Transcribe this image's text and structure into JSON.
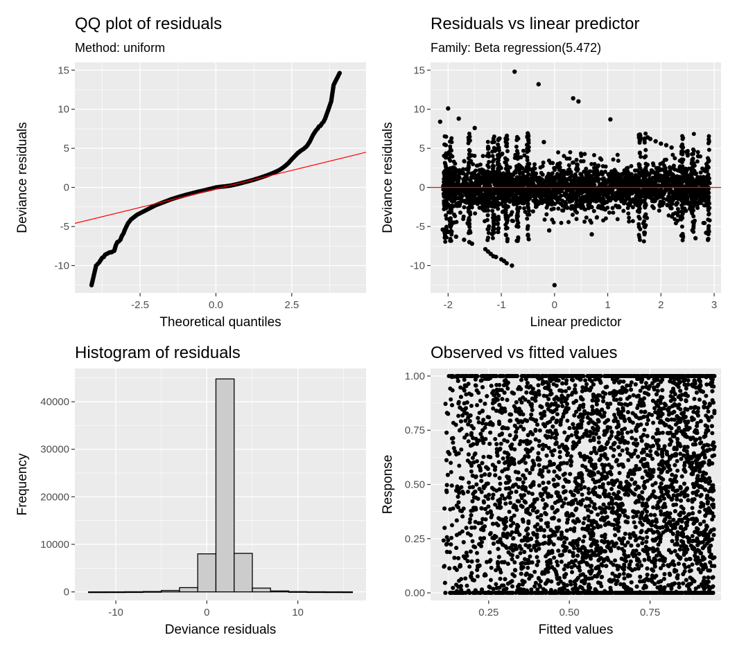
{
  "colors": {
    "panel_bg": "#ebebeb",
    "grid": "#ffffff",
    "points": "#000000",
    "reference_line": "#ff0000",
    "bar_fill": "#cccccc",
    "tick_text": "#4d4d4d"
  },
  "chart_data": [
    {
      "type": "scatter",
      "title": "QQ plot of residuals",
      "subtitle": "Method: uniform",
      "xlabel": "Theoretical quantiles",
      "ylabel": "Deviance residuals",
      "xlim": [
        -4.65,
        4.95
      ],
      "ylim": [
        -13.5,
        16.0
      ],
      "xticks": [
        -2.5,
        0.0,
        2.5
      ],
      "xtick_labels": [
        "-2.5",
        "0.0",
        "2.5"
      ],
      "yticks": [
        -10,
        -5,
        0,
        5,
        10,
        15
      ],
      "ytick_labels": [
        "-10",
        "-5",
        "0",
        "5",
        "10",
        "15"
      ],
      "points": [
        [
          -4.1,
          -12.5
        ],
        [
          -3.95,
          -10.0
        ],
        [
          -3.9,
          -9.8
        ],
        [
          -3.85,
          -9.6
        ],
        [
          -3.8,
          -9.3
        ],
        [
          -3.75,
          -9.0
        ],
        [
          -3.7,
          -8.9
        ],
        [
          -3.65,
          -8.6
        ],
        [
          -3.6,
          -8.5
        ],
        [
          -3.55,
          -8.4
        ],
        [
          -3.5,
          -8.3
        ],
        [
          -3.45,
          -8.3
        ],
        [
          -3.4,
          -8.2
        ],
        [
          -3.35,
          -8.1
        ],
        [
          -3.3,
          -7.4
        ],
        [
          -3.25,
          -7.0
        ],
        [
          -3.2,
          -6.9
        ],
        [
          -3.15,
          -6.7
        ],
        [
          -3.1,
          -6.2
        ],
        [
          -3.05,
          -5.9
        ],
        [
          -3.0,
          -5.4
        ],
        [
          -2.95,
          -5.0
        ],
        [
          -2.9,
          -4.6
        ],
        [
          -2.8,
          -4.1
        ],
        [
          -2.7,
          -3.8
        ],
        [
          -2.6,
          -3.5
        ],
        [
          -2.5,
          -3.3
        ],
        [
          -2.4,
          -3.1
        ],
        [
          -2.3,
          -2.9
        ],
        [
          -2.2,
          -2.7
        ],
        [
          -2.1,
          -2.5
        ],
        [
          -2.0,
          -2.3
        ],
        [
          -1.9,
          -2.15
        ],
        [
          -1.8,
          -2.0
        ],
        [
          -1.7,
          -1.85
        ],
        [
          -1.6,
          -1.7
        ],
        [
          -1.5,
          -1.55
        ],
        [
          -1.4,
          -1.42
        ],
        [
          -1.3,
          -1.3
        ],
        [
          -1.2,
          -1.18
        ],
        [
          -1.1,
          -1.07
        ],
        [
          -1.0,
          -0.96
        ],
        [
          -0.9,
          -0.86
        ],
        [
          -0.8,
          -0.76
        ],
        [
          -0.7,
          -0.66
        ],
        [
          -0.6,
          -0.56
        ],
        [
          -0.5,
          -0.47
        ],
        [
          -0.4,
          -0.38
        ],
        [
          -0.3,
          -0.29
        ],
        [
          -0.2,
          -0.2
        ],
        [
          -0.1,
          -0.1
        ],
        [
          0.0,
          0.0
        ],
        [
          0.1,
          0.06
        ],
        [
          0.2,
          0.1
        ],
        [
          0.3,
          0.14
        ],
        [
          0.4,
          0.19
        ],
        [
          0.5,
          0.25
        ],
        [
          0.6,
          0.33
        ],
        [
          0.7,
          0.42
        ],
        [
          0.8,
          0.52
        ],
        [
          0.9,
          0.62
        ],
        [
          1.0,
          0.72
        ],
        [
          1.1,
          0.82
        ],
        [
          1.2,
          0.93
        ],
        [
          1.3,
          1.05
        ],
        [
          1.4,
          1.17
        ],
        [
          1.5,
          1.3
        ],
        [
          1.6,
          1.43
        ],
        [
          1.7,
          1.57
        ],
        [
          1.8,
          1.72
        ],
        [
          1.9,
          1.88
        ],
        [
          2.0,
          2.05
        ],
        [
          2.1,
          2.25
        ],
        [
          2.2,
          2.5
        ],
        [
          2.3,
          2.8
        ],
        [
          2.4,
          3.15
        ],
        [
          2.5,
          3.6
        ],
        [
          2.6,
          4.0
        ],
        [
          2.7,
          4.4
        ],
        [
          2.8,
          4.7
        ],
        [
          2.9,
          4.95
        ],
        [
          3.0,
          5.3
        ],
        [
          3.05,
          5.6
        ],
        [
          3.1,
          5.9
        ],
        [
          3.15,
          6.3
        ],
        [
          3.2,
          6.7
        ],
        [
          3.25,
          7.0
        ],
        [
          3.3,
          7.3
        ],
        [
          3.35,
          7.5
        ],
        [
          3.4,
          7.8
        ],
        [
          3.45,
          7.9
        ],
        [
          3.5,
          8.2
        ],
        [
          3.55,
          8.4
        ],
        [
          3.6,
          8.8
        ],
        [
          3.72,
          10.1
        ],
        [
          3.8,
          11.0
        ],
        [
          3.88,
          13.1
        ],
        [
          4.1,
          14.8
        ]
      ],
      "reference_line": [
        [
          -4.65,
          -4.6
        ],
        [
          4.95,
          4.5
        ]
      ]
    },
    {
      "type": "scatter",
      "title": "Residuals vs linear predictor",
      "subtitle": "Family: Beta regression(5.472)",
      "xlabel": "Linear predictor",
      "ylabel": "Deviance residuals",
      "xlim": [
        -2.33,
        3.13
      ],
      "ylim": [
        -13.5,
        16.0
      ],
      "xticks": [
        -2,
        -1,
        0,
        1,
        2,
        3
      ],
      "xtick_labels": [
        "-2",
        "-1",
        "0",
        "1",
        "2",
        "3"
      ],
      "yticks": [
        -10,
        -5,
        0,
        5,
        10,
        15
      ],
      "ytick_labels": [
        "-10",
        "-5",
        "0",
        "5",
        "10",
        "15"
      ],
      "points": [
        [
          -2.1,
          -5.4
        ],
        [
          -2.0,
          -5.7
        ],
        [
          -1.85,
          -6.3
        ],
        [
          -1.7,
          -6.7
        ],
        [
          -1.6,
          -7.0
        ],
        [
          -1.55,
          -7.2
        ],
        [
          -1.3,
          -7.9
        ],
        [
          -1.25,
          -8.2
        ],
        [
          -1.2,
          -8.5
        ],
        [
          -1.15,
          -8.8
        ],
        [
          -1.1,
          -8.9
        ],
        [
          -1.0,
          -9.2
        ],
        [
          -0.95,
          -9.4
        ],
        [
          -0.9,
          -9.7
        ],
        [
          -0.8,
          -10.0
        ],
        [
          -2.0,
          10.1
        ],
        [
          -2.15,
          8.4
        ],
        [
          -1.8,
          8.8
        ],
        [
          -1.5,
          7.6
        ],
        [
          -0.75,
          14.8
        ],
        [
          -0.3,
          13.2
        ],
        [
          0.35,
          11.4
        ],
        [
          0.45,
          11.0
        ],
        [
          1.05,
          8.7
        ],
        [
          0.0,
          -12.5
        ],
        [
          -0.1,
          -5.5
        ],
        [
          0.7,
          -6.0
        ],
        [
          2.65,
          -6.5
        ],
        [
          2.85,
          -5.8
        ],
        [
          -0.2,
          5.8
        ],
        [
          1.75,
          6.4
        ],
        [
          1.8,
          6.2
        ],
        [
          1.9,
          5.9
        ],
        [
          2.0,
          5.6
        ],
        [
          2.1,
          5.4
        ],
        [
          2.2,
          5.1
        ],
        [
          2.4,
          4.6
        ],
        [
          2.5,
          4.3
        ],
        [
          2.7,
          4.0
        ],
        [
          2.9,
          3.4
        ]
      ],
      "reference_line": [
        [
          -2.33,
          0
        ],
        [
          3.13,
          0
        ]
      ]
    },
    {
      "type": "bar",
      "title": "Histogram of residuals",
      "xlabel": "Deviance residuals",
      "ylabel": "Frequency",
      "xlim": [
        -14.5,
        17.5
      ],
      "ylim": [
        -1800,
        47000
      ],
      "xticks": [
        -10,
        0,
        10
      ],
      "xtick_labels": [
        "-10",
        "0",
        "10"
      ],
      "yticks": [
        0,
        10000,
        20000,
        30000,
        40000
      ],
      "ytick_labels": [
        "0",
        "10000",
        "20000",
        "30000",
        "40000"
      ],
      "bin_edges": [
        -13,
        -11,
        -9,
        -7,
        -5,
        -3,
        -1,
        1,
        3,
        5,
        7,
        9,
        11,
        13,
        15,
        16
      ],
      "counts": [
        5,
        10,
        30,
        80,
        300,
        900,
        8000,
        44800,
        8100,
        800,
        200,
        60,
        25,
        12,
        5
      ]
    },
    {
      "type": "scatter",
      "title": "Observed vs fitted values",
      "xlabel": "Fitted values",
      "ylabel": "Response",
      "xlim": [
        0.07,
        0.97
      ],
      "ylim": [
        -0.035,
        1.035
      ],
      "xticks": [
        0.25,
        0.5,
        0.75
      ],
      "xtick_labels": [
        "0.25",
        "0.50",
        "0.75"
      ],
      "yticks": [
        0,
        0.25,
        0.5,
        0.75,
        1.0
      ],
      "ytick_labels": [
        "0.00",
        "0.25",
        "0.50",
        "0.75",
        "1.00"
      ],
      "description_range": {
        "x": [
          0.11,
          0.95
        ],
        "y": [
          0.0,
          1.0
        ]
      }
    }
  ]
}
